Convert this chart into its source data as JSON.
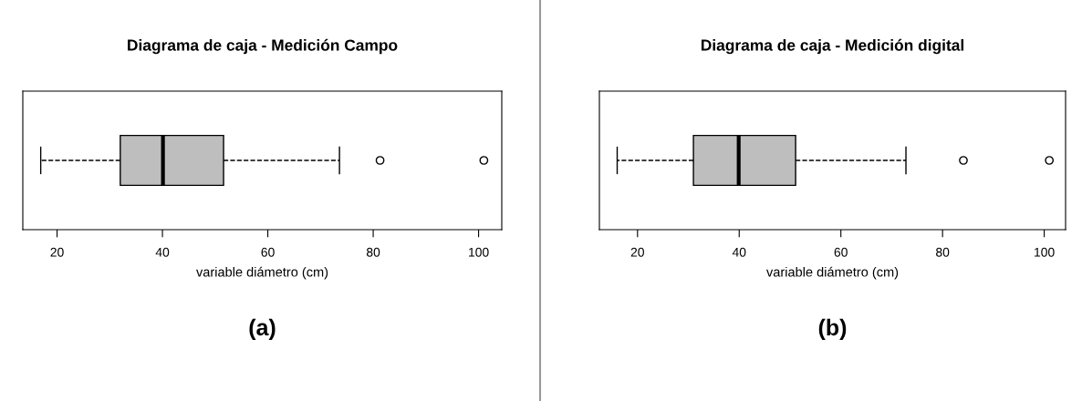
{
  "chart_data": [
    {
      "type": "box",
      "title": "Diagrama de caja - Medición Campo",
      "xlabel": "variable diámetro (cm)",
      "orientation": "horizontal",
      "categories": [
        null
      ],
      "boxes": [
        {
          "low": 16.9,
          "q1": 32.0,
          "median": 40.1,
          "q3": 51.6,
          "high": 73.6,
          "outliers": [
            81.3,
            101.0
          ]
        }
      ],
      "color": "#bebebe",
      "xlim": [
        13.5,
        104.4
      ],
      "xticks": [
        20,
        40,
        60,
        80,
        100
      ],
      "tick_labels": "x",
      "grid": false,
      "annotations": [
        "(a)"
      ]
    },
    {
      "type": "box",
      "title": "Diagrama de caja - Medición digital",
      "xlabel": "variable diámetro (cm)",
      "orientation": "horizontal",
      "categories": [
        null
      ],
      "boxes": [
        {
          "low": 16.0,
          "q1": 31.0,
          "median": 39.9,
          "q3": 51.1,
          "high": 72.8,
          "outliers": [
            84.1,
            101.0
          ]
        }
      ],
      "color": "#bebebe",
      "xlim": [
        12.5,
        104.2
      ],
      "xticks": [
        20,
        40,
        60,
        80,
        100
      ],
      "tick_labels": "x",
      "grid": false,
      "annotations": [
        "(b)"
      ]
    }
  ]
}
